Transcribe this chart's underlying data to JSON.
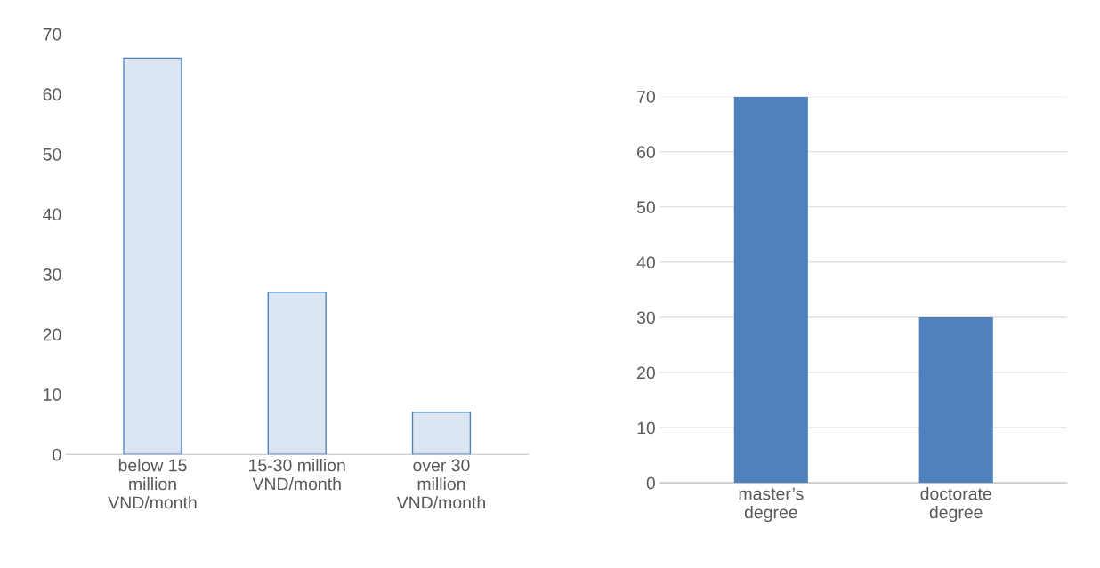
{
  "chart_data": [
    {
      "type": "bar",
      "categories": [
        "below 15 million VND/month",
        "15-30 million VND/month",
        "over 30 million VND/month"
      ],
      "values": [
        66,
        27,
        7
      ],
      "color": "#dce6f2",
      "ylim": [
        0,
        70
      ],
      "yticks": [
        0,
        10,
        20,
        30,
        40,
        50,
        60,
        70
      ],
      "grid": false
    },
    {
      "type": "bar",
      "categories": [
        "master’s degree",
        "doctorate degree"
      ],
      "values": [
        70,
        30
      ],
      "color": "#4f81bd",
      "ylim": [
        0,
        70
      ],
      "yticks": [
        0,
        10,
        20,
        30,
        40,
        50,
        60,
        70
      ],
      "grid": "y"
    }
  ]
}
